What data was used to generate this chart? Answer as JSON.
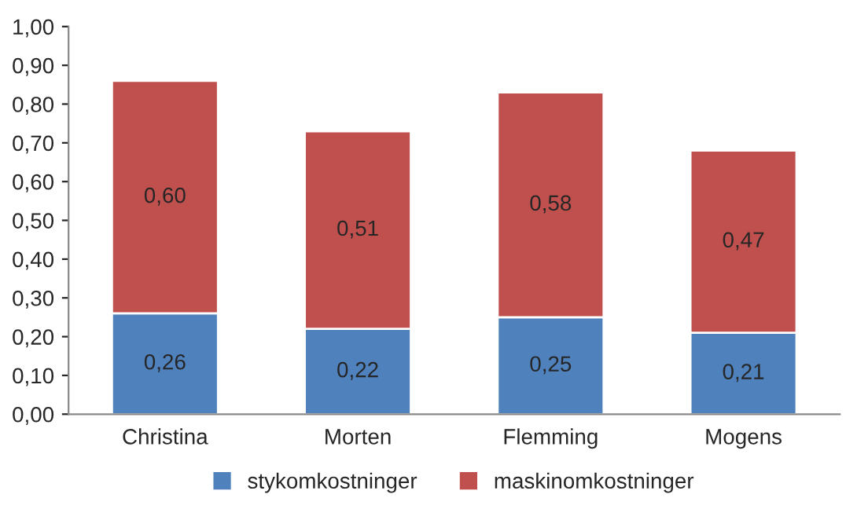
{
  "chart_data": {
    "type": "bar",
    "stacked": true,
    "categories": [
      "Christina",
      "Morten",
      "Flemming",
      "Mogens"
    ],
    "series": [
      {
        "name": "stykomkostninger",
        "color": "#4f81bd",
        "values": [
          0.26,
          0.22,
          0.25,
          0.21
        ],
        "value_labels": [
          "0,26",
          "0,22",
          "0,25",
          "0,21"
        ]
      },
      {
        "name": "maskinomkostninger",
        "color": "#c0504d",
        "values": [
          0.6,
          0.51,
          0.58,
          0.47
        ],
        "value_labels": [
          "0,60",
          "0,51",
          "0,58",
          "0,47"
        ]
      }
    ],
    "ylim": [
      0,
      1.0
    ],
    "yticks": [
      {
        "value": 0,
        "label": "0,00"
      },
      {
        "value": 0.1,
        "label": "0,10"
      },
      {
        "value": 0.2,
        "label": "0,20"
      },
      {
        "value": 0.3,
        "label": "0,30"
      },
      {
        "value": 0.4,
        "label": "0,40"
      },
      {
        "value": 0.5,
        "label": "0,50"
      },
      {
        "value": 0.6,
        "label": "0,60"
      },
      {
        "value": 0.7,
        "label": "0,70"
      },
      {
        "value": 0.8,
        "label": "0,80"
      },
      {
        "value": 0.9,
        "label": "0,90"
      },
      {
        "value": 1.0,
        "label": "1,00"
      }
    ],
    "grid": false,
    "legend": "bottom"
  }
}
